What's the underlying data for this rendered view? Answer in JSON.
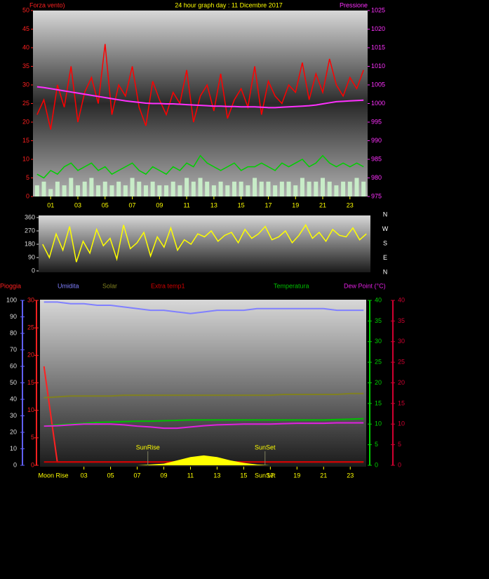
{
  "chart_data": [
    {
      "type": "line",
      "title": "24 hour graph day : 11 Dicembre 2017",
      "y_label": "Forza vento)",
      "y2_label": "Pressione",
      "x": [
        0,
        0.5,
        1,
        1.5,
        2,
        2.5,
        3,
        3.5,
        4,
        4.5,
        5,
        5.5,
        6,
        6.5,
        7,
        7.5,
        8,
        8.5,
        9,
        9.5,
        10,
        10.5,
        11,
        11.5,
        12,
        12.5,
        13,
        13.5,
        14,
        14.5,
        15,
        15.5,
        16,
        16.5,
        17,
        17.5,
        18,
        18.5,
        19,
        19.5,
        20,
        20.5,
        21,
        21.5,
        22,
        22.5,
        23,
        23.5,
        24
      ],
      "xlim": [
        -0.3,
        24.3
      ],
      "xticks": [
        {
          "value": 1,
          "label": "01"
        },
        {
          "value": 3,
          "label": "03"
        },
        {
          "value": 5,
          "label": "05"
        },
        {
          "value": 7,
          "label": "07"
        },
        {
          "value": 9,
          "label": "09"
        },
        {
          "value": 11,
          "label": "11"
        },
        {
          "value": 13,
          "label": "13"
        },
        {
          "value": 15,
          "label": "15"
        },
        {
          "value": 17,
          "label": "17"
        },
        {
          "value": 19,
          "label": "19"
        },
        {
          "value": 21,
          "label": "21"
        },
        {
          "value": 23,
          "label": "23"
        }
      ],
      "ylim": [
        0,
        50
      ],
      "yticks": [
        0,
        5,
        10,
        15,
        20,
        25,
        30,
        35,
        40,
        45,
        50
      ],
      "y2lim": [
        975,
        1025
      ],
      "y2ticks": [
        975,
        980,
        985,
        990,
        995,
        1000,
        1005,
        1010,
        1015,
        1020,
        1025
      ],
      "series": [
        {
          "type": "bar",
          "color": "#c8ecc8",
          "values": [
            3,
            4,
            2,
            4,
            3,
            5,
            3,
            4,
            5,
            3,
            4,
            3,
            4,
            3,
            5,
            4,
            3,
            4,
            3,
            3,
            4,
            3,
            5,
            4,
            5,
            4,
            3,
            4,
            3,
            4,
            4,
            3,
            5,
            4,
            4,
            3,
            4,
            4,
            3,
            5,
            4,
            4,
            5,
            4,
            3,
            4,
            4,
            5,
            4
          ]
        },
        {
          "type": "line",
          "color": "#ff0000",
          "values": [
            22,
            26,
            18,
            30,
            24,
            35,
            20,
            28,
            32,
            25,
            41,
            22,
            30,
            27,
            35,
            24,
            19,
            31,
            26,
            22,
            28,
            25,
            34,
            20,
            27,
            30,
            23,
            33,
            21,
            26,
            29,
            24,
            35,
            22,
            31,
            27,
            25,
            30,
            28,
            36,
            26,
            33,
            28,
            37,
            30,
            27,
            32,
            29,
            34
          ]
        },
        {
          "type": "line",
          "color": "#00d000",
          "values": [
            6,
            5,
            7,
            6,
            8,
            9,
            7,
            8,
            9,
            7,
            8,
            6,
            7,
            8,
            9,
            7,
            6,
            8,
            7,
            6,
            8,
            7,
            9,
            8,
            11,
            9,
            8,
            7,
            8,
            9,
            7,
            8,
            8,
            9,
            8,
            7,
            9,
            8,
            9,
            10,
            8,
            9,
            11,
            9,
            8,
            9,
            8,
            9,
            8
          ]
        },
        {
          "type": "line",
          "color": "#ff30ff",
          "axis": "y2",
          "values": [
            1004.5,
            1004.3,
            1004,
            1003.7,
            1003.4,
            1003.1,
            1002.8,
            1002.5,
            1002.2,
            1001.9,
            1001.6,
            1001.3,
            1001,
            1000.7,
            1000.5,
            1000.3,
            1000.1,
            1000,
            1000,
            999.9,
            999.9,
            999.8,
            999.7,
            999.6,
            999.5,
            999.4,
            999.3,
            999.3,
            999.2,
            999.2,
            999.1,
            999.1,
            999.1,
            999,
            998.9,
            998.9,
            999,
            999.1,
            999.2,
            999.3,
            999.4,
            999.6,
            999.9,
            1000.2,
            1000.5,
            1000.6,
            1000.7,
            1000.8,
            1000.9
          ]
        }
      ]
    },
    {
      "type": "line",
      "x": [
        0,
        0.5,
        1,
        1.5,
        2,
        2.5,
        3,
        3.5,
        4,
        4.5,
        5,
        5.5,
        6,
        6.5,
        7,
        7.5,
        8,
        8.5,
        9,
        9.5,
        10,
        10.5,
        11,
        11.5,
        12,
        12.5,
        13,
        13.5,
        14,
        14.5,
        15,
        15.5,
        16,
        16.5,
        17,
        17.5,
        18,
        18.5,
        19,
        19.5,
        20,
        20.5,
        21,
        21.5,
        22,
        22.5,
        23,
        23.5,
        24
      ],
      "xlim": [
        -0.3,
        24.3
      ],
      "ylim": [
        0,
        360
      ],
      "yticks": [
        0,
        90,
        180,
        270,
        360
      ],
      "y2lim": [
        0,
        360
      ],
      "y2ticks": [
        {
          "value": 0,
          "label": "N"
        },
        {
          "value": 90,
          "label": "E"
        },
        {
          "value": 180,
          "label": "S"
        },
        {
          "value": 270,
          "label": "W"
        },
        {
          "value": 360,
          "label": "N"
        }
      ],
      "series": [
        {
          "type": "line",
          "color": "#ffff00",
          "values": [
            180,
            90,
            250,
            140,
            300,
            60,
            200,
            120,
            280,
            170,
            220,
            80,
            310,
            150,
            190,
            260,
            100,
            230,
            160,
            290,
            140,
            210,
            180,
            250,
            230,
            270,
            200,
            240,
            260,
            190,
            280,
            220,
            250,
            300,
            210,
            230,
            270,
            190,
            240,
            310,
            220,
            260,
            200,
            280,
            240,
            230,
            290,
            210,
            250
          ]
        }
      ]
    },
    {
      "type": "line",
      "x": [
        0,
        1,
        2,
        3,
        4,
        5,
        6,
        7,
        8,
        9,
        10,
        11,
        12,
        13,
        14,
        15,
        16,
        17,
        18,
        19,
        20,
        21,
        22,
        23,
        24
      ],
      "xlim": [
        -0.3,
        24.2
      ],
      "xticks": [
        {
          "value": 3,
          "label": "03"
        },
        {
          "value": 5,
          "label": "05"
        },
        {
          "value": 7,
          "label": "07"
        },
        {
          "value": 9,
          "label": "09"
        },
        {
          "value": 11,
          "label": "11"
        },
        {
          "value": 13,
          "label": "13"
        },
        {
          "value": 15,
          "label": "15"
        },
        {
          "value": 17,
          "label": "17"
        },
        {
          "value": 19,
          "label": "19"
        },
        {
          "value": 21,
          "label": "21"
        },
        {
          "value": 23,
          "label": "23"
        }
      ],
      "axes": [
        {
          "lim": [
            0,
            100
          ],
          "ticks": [
            0,
            10,
            20,
            30,
            40,
            50,
            60,
            70,
            80,
            90,
            100
          ],
          "color": "#6060ff"
        },
        {
          "lim": [
            0,
            30
          ],
          "ticks": [
            0,
            5,
            10,
            15,
            20,
            25,
            30
          ],
          "color": "#ff2020"
        },
        {
          "lim": [
            0,
            40
          ],
          "ticks": [
            0,
            5,
            10,
            15,
            20,
            25,
            30,
            35,
            40
          ],
          "color": "#00d000"
        },
        {
          "lim": [
            0,
            40
          ],
          "ticks": [
            0,
            5,
            10,
            15,
            20,
            25,
            30,
            35,
            40
          ],
          "color": "#d00030"
        }
      ],
      "series": [
        {
          "name": "Pioggia",
          "type": "line",
          "color": "#ff2020",
          "axis": 1,
          "values": [
            18,
            0.6,
            0.6,
            0.6,
            0.6,
            0.6,
            0.6,
            0.6,
            0.6,
            0.6,
            0.6,
            0.6,
            0.6,
            0.6,
            0.6,
            0.6,
            0.6,
            0.6,
            0.6,
            0.6,
            0.6,
            0.6,
            0.6,
            0.6,
            0.6
          ]
        },
        {
          "name": "Umidita",
          "type": "line",
          "color": "#8080ff",
          "axis": 0,
          "values": [
            99,
            99,
            98,
            98,
            97,
            97,
            96,
            95,
            94,
            94,
            93,
            92,
            93,
            94,
            94,
            94,
            95,
            95,
            95,
            95,
            95,
            95,
            94,
            94,
            94
          ]
        },
        {
          "name": "Solar",
          "type": "line",
          "color": "#808020",
          "axis": 0,
          "values": [
            41,
            41.5,
            42,
            42,
            42,
            42,
            42.5,
            42.5,
            42.5,
            42.5,
            42.5,
            42.5,
            42.5,
            42.5,
            42.5,
            42.5,
            42.5,
            42.5,
            43,
            43,
            43,
            43,
            43,
            43.5,
            43.5
          ]
        },
        {
          "name": "Extra temp1",
          "type": "line",
          "color": "#d00000",
          "axis": 3,
          "values": [
            0.8,
            0.8,
            0.8,
            0.8,
            0.8,
            0.8,
            0.8,
            0.8,
            0.8,
            0.8,
            0.8,
            0.8,
            0.8,
            0.8,
            0.8,
            0.8,
            0.8,
            0.8,
            0.8,
            0.8,
            0.8,
            0.8,
            0.8,
            0.8,
            0.8
          ]
        },
        {
          "name": "Temperatura",
          "type": "line",
          "color": "#00c000",
          "axis": 2,
          "values": [
            9.5,
            9.8,
            10,
            10.2,
            10.4,
            10.5,
            10.6,
            10.7,
            10.7,
            10.8,
            10.9,
            11,
            11,
            11,
            11,
            11,
            11,
            11,
            11,
            11,
            11,
            11,
            11.1,
            11.2,
            11.3
          ]
        },
        {
          "name": "Dew Point (°C)",
          "type": "line",
          "color": "#e020e0",
          "axis": 2,
          "values": [
            9.5,
            9.6,
            9.8,
            10,
            10,
            10,
            9.8,
            9.5,
            9.3,
            9,
            9,
            9.3,
            9.6,
            9.8,
            9.9,
            10,
            10,
            10,
            10.1,
            10.2,
            10.2,
            10.2,
            10.3,
            10.3,
            10.3
          ]
        },
        {
          "type": "area",
          "color": "#ffff00",
          "axis": 0,
          "values": [
            0,
            0,
            0,
            0,
            0,
            0,
            0,
            0,
            0.5,
            1,
            3,
            5,
            6,
            5,
            3,
            1.5,
            0.5,
            0,
            0,
            0,
            0,
            0,
            0,
            0,
            0
          ]
        }
      ],
      "annotations": [
        {
          "text": "SunRise",
          "x": 7.8
        },
        {
          "text": "SunSet",
          "x": 16.6
        }
      ],
      "bottom_annotations": [
        {
          "text": "Moon Rise",
          "x": 0.7
        },
        {
          "text": "SunSet",
          "x": 16.6
        }
      ]
    }
  ]
}
